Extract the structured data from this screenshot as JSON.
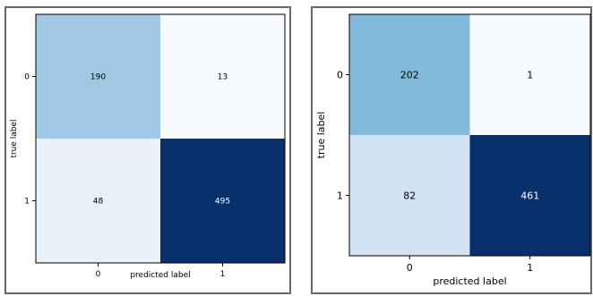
{
  "chart_data": [
    {
      "type": "heatmap",
      "title": "",
      "xlabel": "predicted label",
      "ylabel": "true label",
      "x_categories": [
        "0",
        "1"
      ],
      "y_categories": [
        "0",
        "1"
      ],
      "values": [
        [
          190,
          13
        ],
        [
          48,
          495
        ]
      ],
      "colormap": "Blues",
      "colors": {
        "cells": [
          "#a0c8e2",
          "#f7fbff",
          "#e9f1fa",
          "#08306b"
        ],
        "text_light": "#ffffff",
        "text_dark": "#000000",
        "frame": "#666666"
      }
    },
    {
      "type": "heatmap",
      "title": "",
      "xlabel": "predicted label",
      "ylabel": "true label",
      "x_categories": [
        "0",
        "1"
      ],
      "y_categories": [
        "0",
        "1"
      ],
      "values": [
        [
          202,
          1
        ],
        [
          82,
          461
        ]
      ],
      "colormap": "Blues",
      "colors": {
        "cells": [
          "#82badb",
          "#f7fbff",
          "#d1e2f2",
          "#08306b"
        ],
        "text_light": "#ffffff",
        "text_dark": "#000000",
        "frame": "#666666"
      }
    }
  ]
}
